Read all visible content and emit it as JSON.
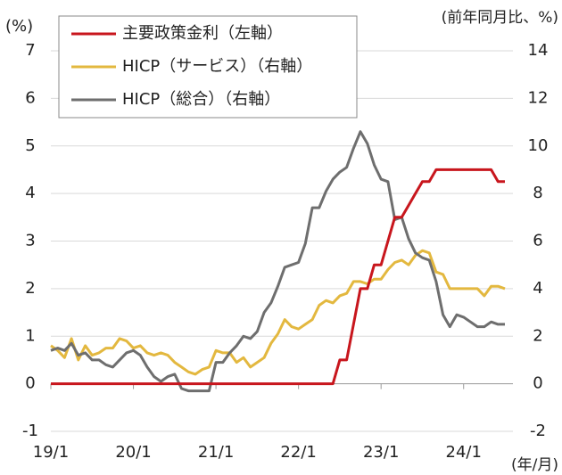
{
  "chart_data": {
    "type": "line",
    "y_label": "(%)",
    "y2_label": "(前年同月比、%)",
    "x_label": "(年/月)",
    "categories": [
      "19/1",
      null,
      null,
      null,
      null,
      null,
      null,
      null,
      null,
      null,
      null,
      null,
      "20/1",
      null,
      null,
      null,
      null,
      null,
      null,
      null,
      null,
      null,
      null,
      null,
      "21/1",
      null,
      null,
      null,
      null,
      null,
      null,
      null,
      null,
      null,
      null,
      null,
      "22/1",
      null,
      null,
      null,
      null,
      null,
      null,
      null,
      null,
      null,
      null,
      null,
      "23/1",
      null,
      null,
      null,
      null,
      null,
      null,
      null,
      null,
      null,
      null,
      null,
      "24/1",
      null,
      null,
      null,
      null,
      null,
      null
    ],
    "ylim": [
      -1,
      7
    ],
    "yticks": [
      -1,
      0,
      1,
      2,
      3,
      4,
      5,
      6,
      7
    ],
    "y2lim": [
      -2,
      14
    ],
    "y2ticks": [
      -2,
      0,
      2,
      4,
      6,
      8,
      10,
      12,
      14
    ],
    "grid": true,
    "legend": "top-left",
    "series": [
      {
        "name": "主要政策金利（左軸）",
        "color": "#c8161d",
        "axis": "y",
        "values": [
          0,
          0,
          0,
          0,
          0,
          0,
          0,
          0,
          0,
          0,
          0,
          0,
          0,
          0,
          0,
          0,
          0,
          0,
          0,
          0,
          0,
          0,
          0,
          0,
          0,
          0,
          0,
          0,
          0,
          0,
          0,
          0,
          0,
          0,
          0,
          0,
          0,
          0,
          0,
          0,
          0,
          0,
          0.5,
          0.5,
          1.25,
          2.0,
          2.0,
          2.5,
          2.5,
          3.0,
          3.5,
          3.5,
          3.75,
          4.0,
          4.25,
          4.25,
          4.5,
          4.5,
          4.5,
          4.5,
          4.5,
          4.5,
          4.5,
          4.5,
          4.5,
          4.25,
          4.25
        ]
      },
      {
        "name": "HICP（サービス）（右軸）",
        "color": "#e3b83f",
        "axis": "y2",
        "values": [
          1.6,
          1.4,
          1.1,
          1.9,
          1.0,
          1.6,
          1.2,
          1.3,
          1.5,
          1.5,
          1.9,
          1.8,
          1.5,
          1.6,
          1.3,
          1.2,
          1.3,
          1.2,
          0.9,
          0.7,
          0.5,
          0.4,
          0.6,
          0.7,
          1.4,
          1.3,
          1.3,
          0.9,
          1.1,
          0.7,
          0.9,
          1.1,
          1.7,
          2.1,
          2.7,
          2.4,
          2.3,
          2.5,
          2.7,
          3.3,
          3.5,
          3.4,
          3.7,
          3.8,
          4.3,
          4.3,
          4.2,
          4.4,
          4.4,
          4.8,
          5.1,
          5.2,
          5.0,
          5.4,
          5.6,
          5.5,
          4.7,
          4.6,
          4.0,
          4.0,
          4.0,
          4.0,
          4.0,
          3.7,
          4.1,
          4.1,
          4.0
        ]
      },
      {
        "name": "HICP（総合）（右軸）",
        "color": "#6e6e6e",
        "axis": "y2",
        "values": [
          1.4,
          1.5,
          1.4,
          1.7,
          1.2,
          1.3,
          1.0,
          1.0,
          0.8,
          0.7,
          1.0,
          1.3,
          1.4,
          1.2,
          0.7,
          0.3,
          0.1,
          0.3,
          0.4,
          -0.2,
          -0.3,
          -0.3,
          -0.3,
          -0.3,
          0.9,
          0.9,
          1.3,
          1.6,
          2.0,
          1.9,
          2.2,
          3.0,
          3.4,
          4.1,
          4.9,
          5.0,
          5.1,
          5.9,
          7.4,
          7.4,
          8.1,
          8.6,
          8.9,
          9.1,
          9.9,
          10.6,
          10.1,
          9.2,
          8.6,
          8.5,
          6.9,
          7.0,
          6.1,
          5.5,
          5.3,
          5.2,
          4.3,
          2.9,
          2.4,
          2.9,
          2.8,
          2.6,
          2.4,
          2.4,
          2.6,
          2.5,
          2.5
        ]
      }
    ]
  }
}
